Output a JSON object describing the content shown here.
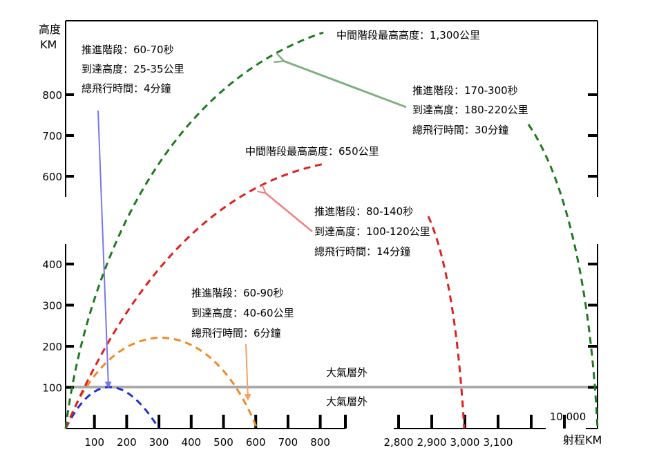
{
  "chart_data": {
    "type": "line",
    "y_axis_title": [
      "高度",
      "KM"
    ],
    "x_axis_title": "射程KM",
    "y_ticks_upper": [
      {
        "value": 600,
        "label": "600"
      },
      {
        "value": 700,
        "label": "700"
      },
      {
        "value": 800,
        "label": "800"
      }
    ],
    "y_ticks_lower": [
      {
        "value": 100,
        "label": "100"
      },
      {
        "value": 200,
        "label": "200"
      },
      {
        "value": 300,
        "label": "300"
      },
      {
        "value": 400,
        "label": "400"
      }
    ],
    "x_ticks_segment1": [
      {
        "value": 100,
        "label": "100"
      },
      {
        "value": 200,
        "label": "200"
      },
      {
        "value": 300,
        "label": "300"
      },
      {
        "value": 400,
        "label": "400"
      },
      {
        "value": 500,
        "label": "500"
      },
      {
        "value": 600,
        "label": "600"
      },
      {
        "value": 700,
        "label": "700"
      },
      {
        "value": 800,
        "label": "800"
      }
    ],
    "x_ticks_segment2": [
      {
        "value": 2800,
        "label": "2,800"
      },
      {
        "value": 2900,
        "label": "2,900"
      },
      {
        "value": 3000,
        "label": "3,000"
      },
      {
        "value": 3100,
        "label": "3,100"
      }
    ],
    "x_ticks_segment3": [
      {
        "value": 10000,
        "label": "10,000"
      }
    ],
    "reference_line": {
      "y": 100,
      "label_above": "大氣層外",
      "label_below": "大氣層外",
      "color": "#aaaaaa"
    },
    "series": [
      {
        "color": "#1f2ed6",
        "range_km": 300,
        "apogee_km": 95
      },
      {
        "color": "#f28a1e",
        "range_km": 600,
        "apogee_km": 225
      },
      {
        "color": "#e02020",
        "range_km": 3000,
        "apogee_km": 650
      },
      {
        "color": "#1e7a1e",
        "range_km": 10000,
        "apogee_km": 1300
      }
    ],
    "annotations": {
      "blue": [
        "推進階段：60-70秒",
        "到達高度：25-35公里",
        "總飛行時間：4分鐘"
      ],
      "orange": [
        "推進階段：60-90秒",
        "到達高度：40-60公里",
        "總飛行時間：6分鐘"
      ],
      "red_peak": "中間階段最高高度：650公里",
      "red": [
        "推進階段：80-140秒",
        "到達高度：100-120公里",
        "總飛行時間：14分鐘"
      ],
      "green_peak": "中間階段最高高度：1,300公里",
      "green": [
        "推進階段：170-300秒",
        "到達高度：180-220公里",
        "總飛行時間：30分鐘"
      ]
    },
    "arrow_colors": {
      "blue": "#7777ee",
      "orange": "#f5a060",
      "red": "#f08080",
      "green": "#80b080"
    }
  }
}
